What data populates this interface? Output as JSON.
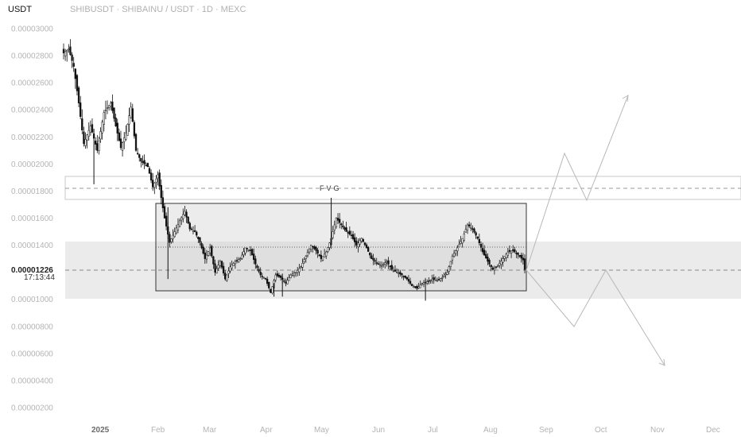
{
  "header": {
    "quote_currency": "USDT",
    "symbol_legend": "SHIBUSDT · SHIBAINU / USDT · 1D · MEXC"
  },
  "chart_data": {
    "type": "candlestick",
    "y_scale": {
      "min": 1e-07,
      "max": 3.1e-06,
      "tick_labels": [
        "0.00003000",
        "0.00002800",
        "0.00002600",
        "0.00002400",
        "0.00002200",
        "0.00002000",
        "0.00001800",
        "0.00001600",
        "0.00001400",
        "0.00001226",
        "0.00001000",
        "0.00000800",
        "0.00000600",
        "0.00000400",
        "0.00000200"
      ],
      "tick_values": [
        3e-05,
        2.8e-05,
        2.6e-05,
        2.4e-05,
        2.2e-05,
        2e-05,
        1.8e-05,
        1.6e-05,
        1.4e-05,
        1.226e-05,
        1e-05,
        8e-06,
        6e-06,
        4e-06,
        2e-06
      ]
    },
    "x_labels": [
      "2025",
      "Feb",
      "Mar",
      "Apr",
      "May",
      "Jun",
      "Jul",
      "Aug",
      "Sep",
      "Oct",
      "Nov",
      "Dec"
    ],
    "current_price": "0.00001226",
    "countdown": "17:13:44",
    "annotation": "FVG",
    "anchors": [
      [
        0,
        2.82e-05
      ],
      [
        3,
        2.85e-05
      ],
      [
        6,
        2.72e-05
      ],
      [
        9,
        2.45e-05
      ],
      [
        12,
        2.15e-05
      ],
      [
        16,
        2.28e-05
      ],
      [
        20,
        2.1e-05
      ],
      [
        24,
        2.38e-05
      ],
      [
        28,
        2.45e-05
      ],
      [
        31,
        2.28e-05
      ],
      [
        34,
        2.12e-05
      ],
      [
        37,
        2.23e-05
      ],
      [
        40,
        2.42e-05
      ],
      [
        43,
        2.1e-05
      ],
      [
        46,
        2.02e-05
      ],
      [
        50,
        1.98e-05
      ],
      [
        53,
        1.83e-05
      ],
      [
        56,
        1.92e-05
      ],
      [
        58,
        1.75e-05
      ],
      [
        60,
        1.6e-05
      ],
      [
        63,
        1.42e-05
      ],
      [
        66,
        1.5e-05
      ],
      [
        69,
        1.58e-05
      ],
      [
        72,
        1.65e-05
      ],
      [
        75,
        1.52e-05
      ],
      [
        78,
        1.5e-05
      ],
      [
        81,
        1.42e-05
      ],
      [
        84,
        1.3e-05
      ],
      [
        87,
        1.38e-05
      ],
      [
        90,
        1.2e-05
      ],
      [
        93,
        1.28e-05
      ],
      [
        96,
        1.15e-05
      ],
      [
        99,
        1.24e-05
      ],
      [
        102,
        1.28e-05
      ],
      [
        105,
        1.3e-05
      ],
      [
        108,
        1.38e-05
      ],
      [
        111,
        1.36e-05
      ],
      [
        114,
        1.26e-05
      ],
      [
        117,
        1.18e-05
      ],
      [
        120,
        1.15e-05
      ],
      [
        123,
        1.05e-05
      ],
      [
        126,
        1.18e-05
      ],
      [
        129,
        1.16e-05
      ],
      [
        132,
        1.12e-05
      ],
      [
        135,
        1.18e-05
      ],
      [
        138,
        1.2e-05
      ],
      [
        141,
        1.24e-05
      ],
      [
        144,
        1.32e-05
      ],
      [
        147,
        1.4e-05
      ],
      [
        150,
        1.36e-05
      ],
      [
        153,
        1.3e-05
      ],
      [
        156,
        1.35e-05
      ],
      [
        159,
        1.45e-05
      ],
      [
        162,
        1.6e-05
      ],
      [
        165,
        1.55e-05
      ],
      [
        168,
        1.5e-05
      ],
      [
        171,
        1.47e-05
      ],
      [
        174,
        1.4e-05
      ],
      [
        177,
        1.45e-05
      ],
      [
        180,
        1.38e-05
      ],
      [
        183,
        1.3e-05
      ],
      [
        186,
        1.27e-05
      ],
      [
        189,
        1.25e-05
      ],
      [
        192,
        1.28e-05
      ],
      [
        195,
        1.22e-05
      ],
      [
        198,
        1.2e-05
      ],
      [
        201,
        1.18e-05
      ],
      [
        204,
        1.15e-05
      ],
      [
        207,
        1.1e-05
      ],
      [
        210,
        1.08e-05
      ],
      [
        213,
        1.12e-05
      ],
      [
        216,
        1.13e-05
      ],
      [
        219,
        1.15e-05
      ],
      [
        222,
        1.14e-05
      ],
      [
        225,
        1.16e-05
      ],
      [
        228,
        1.2e-05
      ],
      [
        231,
        1.32e-05
      ],
      [
        234,
        1.38e-05
      ],
      [
        237,
        1.45e-05
      ],
      [
        240,
        1.55e-05
      ],
      [
        243,
        1.52e-05
      ],
      [
        246,
        1.45e-05
      ],
      [
        249,
        1.35e-05
      ],
      [
        252,
        1.28e-05
      ],
      [
        255,
        1.22e-05
      ],
      [
        258,
        1.25e-05
      ],
      [
        261,
        1.3e-05
      ],
      [
        264,
        1.35e-05
      ],
      [
        267,
        1.36e-05
      ],
      [
        270,
        1.33e-05
      ],
      [
        273,
        1.29e-05
      ],
      [
        274,
        1.22e-05
      ]
    ]
  }
}
